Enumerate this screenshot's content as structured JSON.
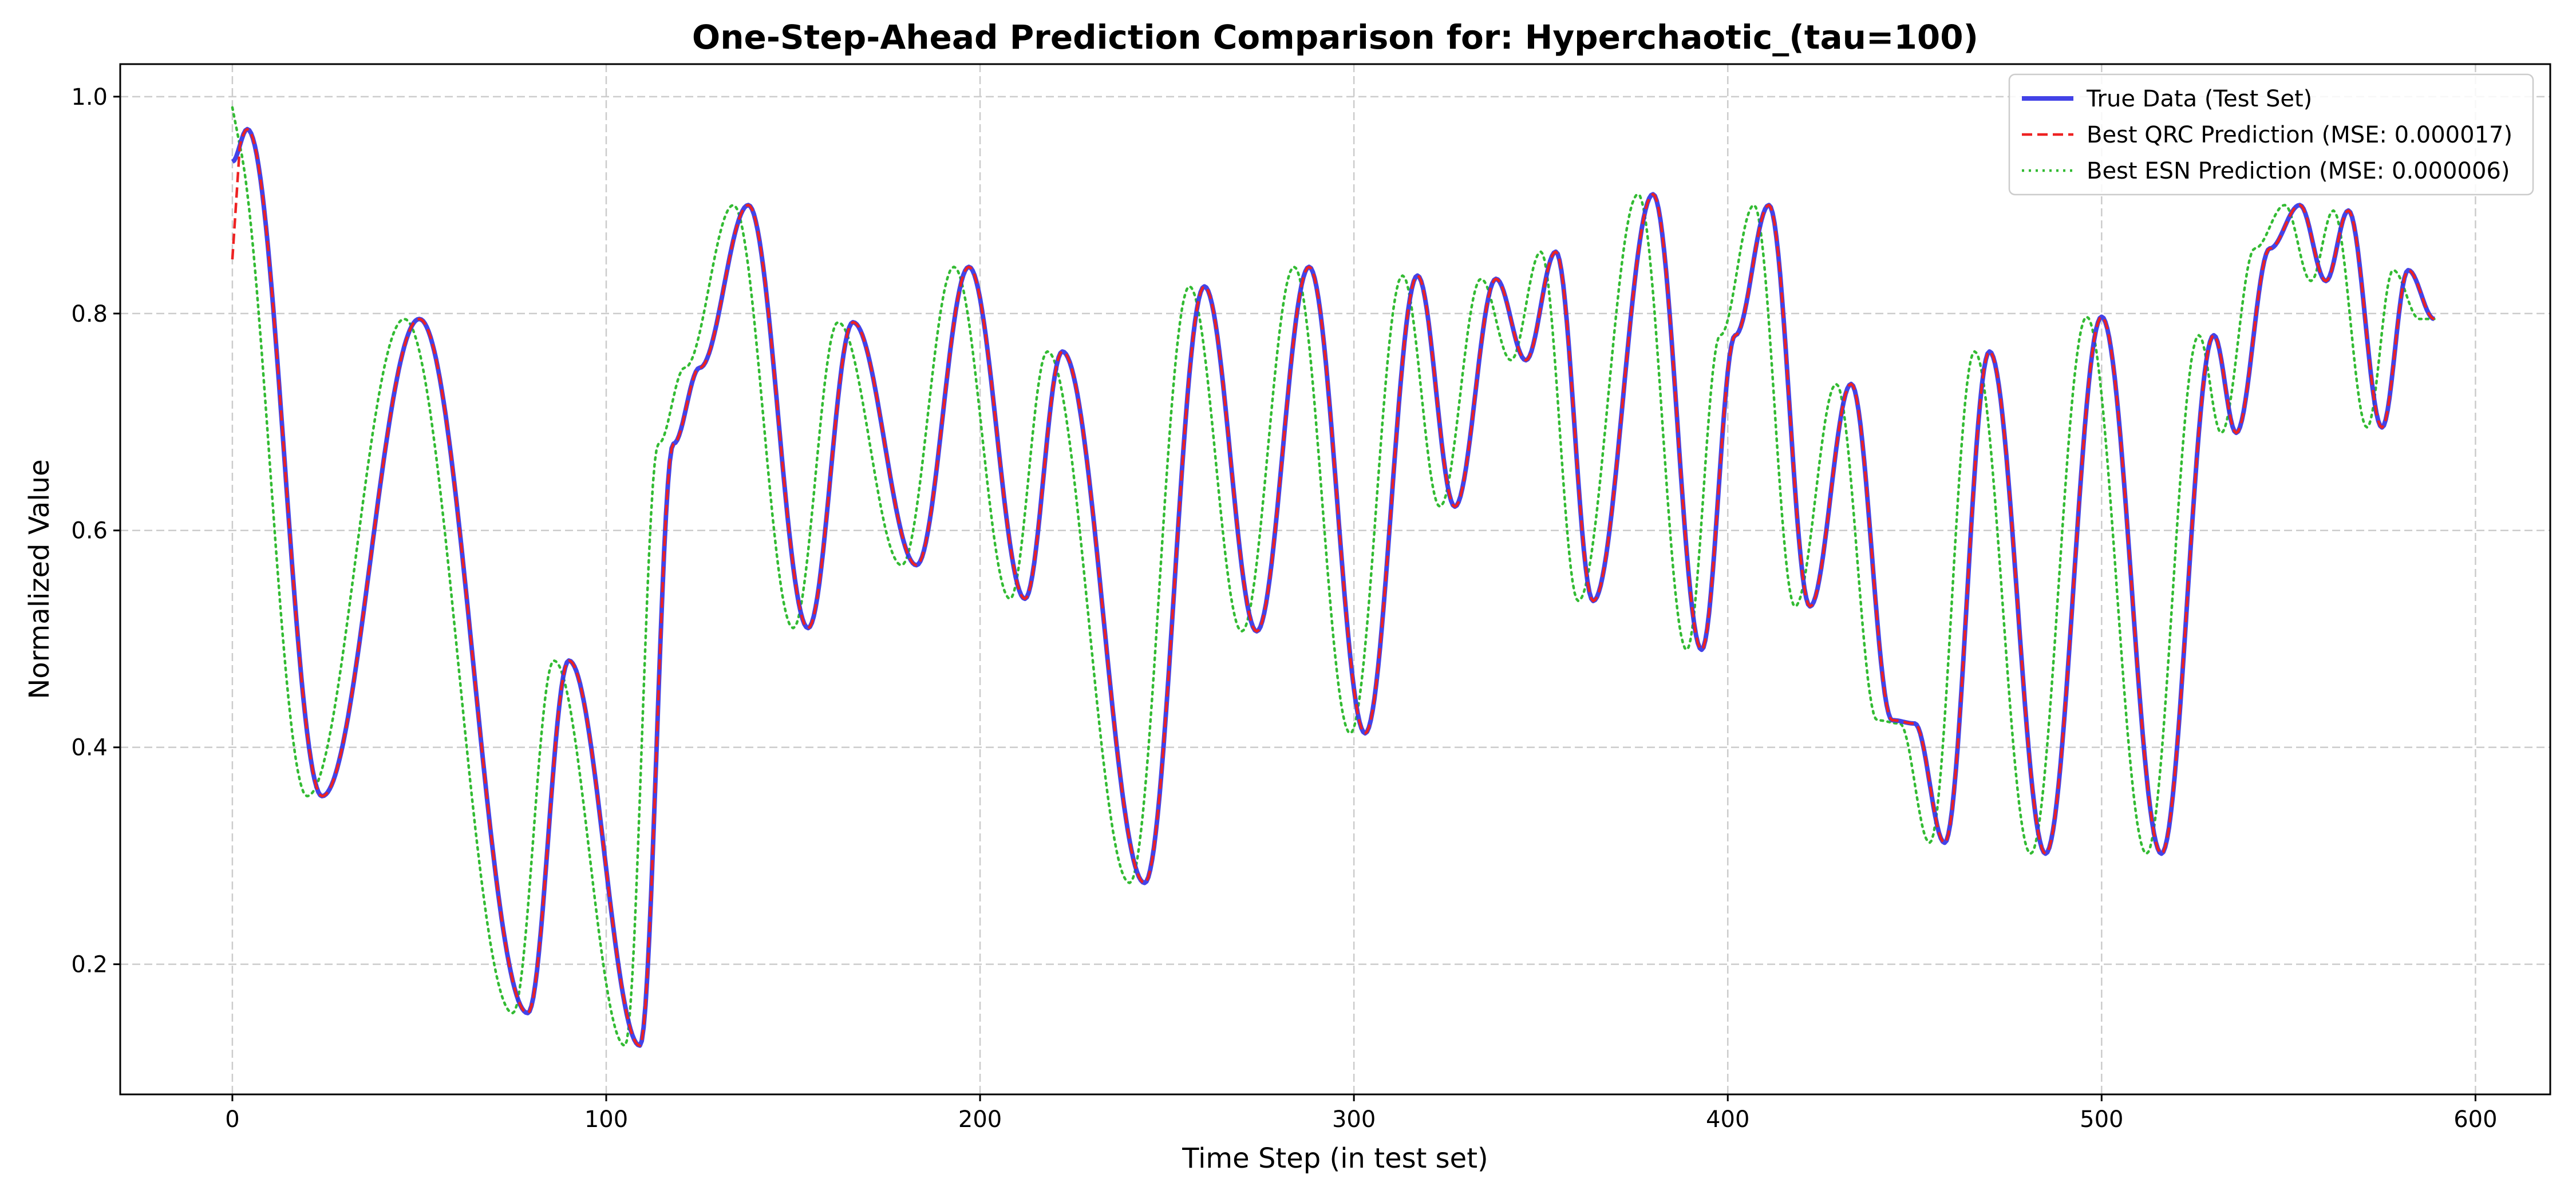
{
  "chart_data": {
    "type": "line",
    "title": "One-Step-Ahead Prediction Comparison for: Hyperchaotic_(tau=100)",
    "xlabel": "Time Step (in test set)",
    "ylabel": "Normalized Value",
    "xlim": [
      -30,
      620
    ],
    "ylim": [
      0.08,
      1.03
    ],
    "xticks": [
      0,
      100,
      200,
      300,
      400,
      500,
      600
    ],
    "yticks": [
      0.2,
      0.4,
      0.6,
      0.8,
      1.0
    ],
    "grid": true,
    "legend_position": "top-right",
    "series": [
      {
        "name": "True Data (Test Set)",
        "color": "#3333e6",
        "style": "solid",
        "shift": 0,
        "start_y": 0.94
      },
      {
        "name": "Best QRC Prediction (MSE: 0.000017)",
        "color": "#ee2222",
        "style": "dashed",
        "shift": 0,
        "start_y": 0.85
      },
      {
        "name": "Best ESN Prediction (MSE: 0.000006)",
        "color": "#33bb33",
        "style": "dotted",
        "shift": -4,
        "start_y": 0.99
      }
    ],
    "extrema": [
      [
        0,
        0.94
      ],
      [
        4,
        0.97
      ],
      [
        24,
        0.355
      ],
      [
        50,
        0.795
      ],
      [
        79,
        0.155
      ],
      [
        90,
        0.48
      ],
      [
        109,
        0.125
      ],
      [
        118,
        0.68
      ],
      [
        125,
        0.75
      ],
      [
        138,
        0.9
      ],
      [
        154,
        0.51
      ],
      [
        166,
        0.792
      ],
      [
        183,
        0.568
      ],
      [
        197,
        0.843
      ],
      [
        212,
        0.537
      ],
      [
        222,
        0.765
      ],
      [
        244,
        0.275
      ],
      [
        260,
        0.825
      ],
      [
        274,
        0.507
      ],
      [
        288,
        0.843
      ],
      [
        303,
        0.413
      ],
      [
        317,
        0.835
      ],
      [
        327,
        0.622
      ],
      [
        338,
        0.832
      ],
      [
        346,
        0.757
      ],
      [
        354,
        0.857
      ],
      [
        364,
        0.535
      ],
      [
        380,
        0.91
      ],
      [
        393,
        0.49
      ],
      [
        402,
        0.78
      ],
      [
        411,
        0.9
      ],
      [
        422,
        0.53
      ],
      [
        433,
        0.735
      ],
      [
        444,
        0.425
      ],
      [
        450,
        0.422
      ],
      [
        458,
        0.312
      ],
      [
        470,
        0.765
      ],
      [
        485,
        0.302
      ],
      [
        500,
        0.797
      ],
      [
        516,
        0.302
      ],
      [
        530,
        0.78
      ],
      [
        536,
        0.69
      ],
      [
        545,
        0.86
      ],
      [
        553,
        0.9
      ],
      [
        560,
        0.83
      ],
      [
        566,
        0.895
      ],
      [
        575,
        0.695
      ],
      [
        582,
        0.84
      ],
      [
        589,
        0.795
      ]
    ]
  }
}
